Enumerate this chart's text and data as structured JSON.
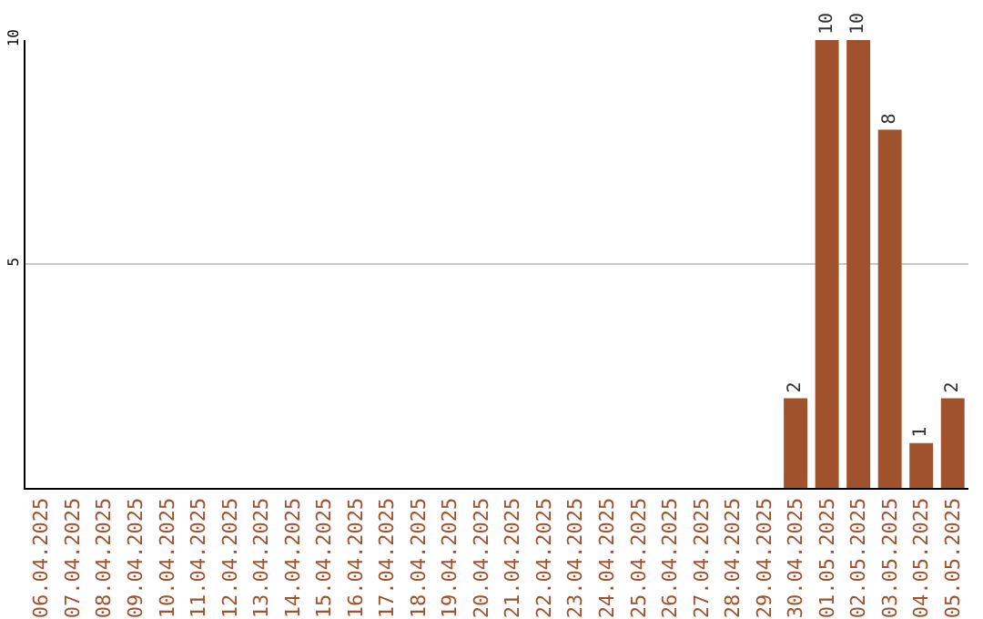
{
  "chart_data": {
    "type": "bar",
    "categories": [
      "06.04.2025",
      "07.04.2025",
      "08.04.2025",
      "09.04.2025",
      "10.04.2025",
      "11.04.2025",
      "12.04.2025",
      "13.04.2025",
      "14.04.2025",
      "15.04.2025",
      "16.04.2025",
      "17.04.2025",
      "18.04.2025",
      "19.04.2025",
      "20.04.2025",
      "21.04.2025",
      "22.04.2025",
      "23.04.2025",
      "24.04.2025",
      "25.04.2025",
      "26.04.2025",
      "27.04.2025",
      "28.04.2025",
      "29.04.2025",
      "30.04.2025",
      "01.05.2025",
      "02.05.2025",
      "03.05.2025",
      "04.05.2025",
      "05.05.2025"
    ],
    "values": [
      0,
      0,
      0,
      0,
      0,
      0,
      0,
      0,
      0,
      0,
      0,
      0,
      0,
      0,
      0,
      0,
      0,
      0,
      0,
      0,
      0,
      0,
      0,
      0,
      2,
      10,
      10,
      8,
      1,
      2
    ],
    "value_labels": [
      null,
      null,
      null,
      null,
      null,
      null,
      null,
      null,
      null,
      null,
      null,
      null,
      null,
      null,
      null,
      null,
      null,
      null,
      null,
      null,
      null,
      null,
      null,
      null,
      "2",
      "10",
      "10",
      "8",
      "1",
      "2"
    ],
    "color": "#a0522d",
    "ylim": [
      0,
      10
    ],
    "yticks": [
      5,
      10
    ],
    "grid": "y",
    "legend": false
  }
}
